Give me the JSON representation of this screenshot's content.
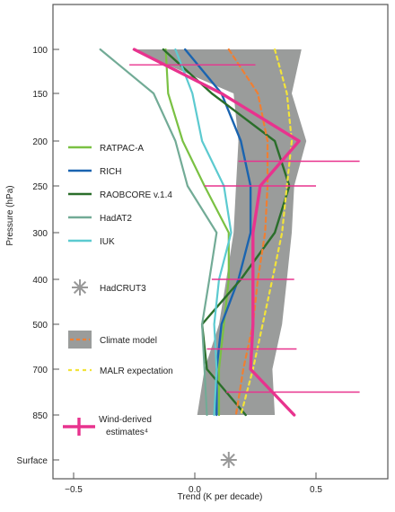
{
  "chart_data": {
    "type": "line",
    "title": "",
    "xlabel": "Trend (K per decade)",
    "ylabel": "Pressure (hPa)",
    "xlim": [
      -0.6,
      0.76
    ],
    "x_ticks": [
      -0.5,
      0.0,
      0.5
    ],
    "x_tick_labels": [
      "−0.5",
      "0.0",
      "0.5"
    ],
    "y_levels": [
      "100",
      "150",
      "200",
      "250",
      "300",
      "400",
      "500",
      "700",
      "850",
      "Surface"
    ],
    "y_axis_inverted": true,
    "grid": false,
    "legend_placement": "left",
    "colors": {
      "RATPAC-A": "#7ac143",
      "RICH": "#1a64b0",
      "RAOBCORE v.1.4": "#2a6e2a",
      "HadAT2": "#72ab96",
      "IUK": "#5ccad0",
      "HadCRUT3": "#999999",
      "Climate model band": "#9a9c9b",
      "Climate model": "#f07f32",
      "MALR expectation": "#f2e33a",
      "Wind-derived estimates": "#e8338e"
    },
    "series": [
      {
        "name": "RATPAC-A",
        "levels": [
          "100",
          "150",
          "200",
          "250",
          "300",
          "400",
          "500",
          "700",
          "850"
        ],
        "values": [
          -0.12,
          -0.11,
          -0.05,
          0.04,
          0.14,
          0.14,
          0.12,
          0.1,
          0.1
        ]
      },
      {
        "name": "RICH",
        "levels": [
          "100",
          "150",
          "200",
          "250",
          "300",
          "400",
          "500",
          "700",
          "850"
        ],
        "values": [
          -0.04,
          0.11,
          0.19,
          0.23,
          0.23,
          0.18,
          0.11,
          0.09,
          0.09
        ]
      },
      {
        "name": "RAOBCORE v.1.4",
        "levels": [
          "100",
          "150",
          "200",
          "250",
          "300",
          "400",
          "500",
          "700",
          "850"
        ],
        "values": [
          -0.13,
          0.07,
          0.33,
          0.39,
          0.33,
          0.19,
          0.03,
          0.05,
          0.21
        ]
      },
      {
        "name": "HadAT2",
        "levels": [
          "100",
          "150",
          "200",
          "250",
          "300",
          "400",
          "500",
          "700",
          "850"
        ],
        "values": [
          -0.39,
          -0.17,
          -0.08,
          -0.03,
          0.09,
          0.06,
          0.03,
          0.04,
          0.05
        ]
      },
      {
        "name": "IUK",
        "levels": [
          "100",
          "150",
          "200",
          "250",
          "300",
          "400",
          "500",
          "700",
          "850"
        ],
        "values": [
          -0.08,
          -0.01,
          0.03,
          0.12,
          0.15,
          0.1,
          0.08,
          0.09,
          0.08
        ]
      },
      {
        "name": "Climate model",
        "levels": [
          "100",
          "150",
          "200",
          "250",
          "300",
          "400",
          "500",
          "700",
          "850"
        ],
        "values": [
          0.14,
          0.26,
          0.3,
          0.3,
          0.29,
          0.26,
          0.24,
          0.2,
          0.17
        ]
      },
      {
        "name": "MALR expectation",
        "levels": [
          "100",
          "150",
          "200",
          "250",
          "300",
          "400",
          "500",
          "700",
          "850"
        ],
        "values": [
          0.33,
          0.38,
          0.4,
          0.38,
          0.36,
          0.32,
          0.28,
          0.24,
          0.19
        ]
      },
      {
        "name": "Wind-derived estimates",
        "levels": [
          "100",
          "150",
          "200",
          "250",
          "300",
          "400",
          "500",
          "700",
          "850"
        ],
        "values": [
          -0.25,
          0.11,
          0.43,
          0.27,
          0.24,
          0.24,
          0.24,
          0.23,
          0.41
        ],
        "err_low": [
          -0.25,
          -0.27,
          null,
          0.04,
          0.08,
          0.07,
          0.05,
          0.0,
          0.13
        ],
        "err_high": [
          0.25,
          0.27,
          0.68,
          0.5,
          0.41,
          0.41,
          0.43,
          0.42,
          0.68
        ]
      }
    ],
    "error_bar_levels": [
      "100",
      "200",
      "250",
      "400",
      "500",
      "700"
    ],
    "error_bars": [
      {
        "level_position": 0.35,
        "low": -0.27,
        "high": 0.25
      },
      {
        "level_position": 2.45,
        "low": 0.18,
        "high": 0.68
      },
      {
        "level_position": 3.0,
        "low": 0.04,
        "high": 0.5
      },
      {
        "level_position": 5.0,
        "low": 0.07,
        "high": 0.41
      },
      {
        "level_position": 6.55,
        "low": 0.05,
        "high": 0.42
      },
      {
        "level_position": 7.5,
        "low": 0.13,
        "high": 0.68
      }
    ],
    "climate_model_band": {
      "levels": [
        "100",
        "150",
        "200",
        "250",
        "300",
        "400",
        "500",
        "700",
        "850"
      ],
      "low": [
        -0.26,
        0.16,
        0.18,
        0.17,
        0.16,
        0.13,
        0.1,
        0.04,
        0.01
      ],
      "high": [
        0.44,
        0.4,
        0.46,
        0.41,
        0.4,
        0.38,
        0.36,
        0.32,
        0.33
      ]
    },
    "hadcrut3": {
      "level": "Surface",
      "value": 0.14
    }
  },
  "legend": [
    {
      "label": "RATPAC-A",
      "kind": "line",
      "color": "#7ac143"
    },
    {
      "label": "RICH",
      "kind": "line",
      "color": "#1a64b0"
    },
    {
      "label": "RAOBCORE v.1.4",
      "kind": "line",
      "color": "#2a6e2a"
    },
    {
      "label": "HadAT2",
      "kind": "line",
      "color": "#72ab96"
    },
    {
      "label": "IUK",
      "kind": "line",
      "color": "#5ccad0"
    },
    {
      "label": "HadCRUT3",
      "kind": "asterisk",
      "color": "#999999"
    },
    {
      "label": "Climate model",
      "kind": "band-dash",
      "color": "#f07f32"
    },
    {
      "label": "MALR expectation",
      "kind": "dash",
      "color": "#f2e33a"
    },
    {
      "label": "Wind-derived estimates⁴",
      "kind": "errorbar",
      "color": "#e8338e"
    }
  ]
}
